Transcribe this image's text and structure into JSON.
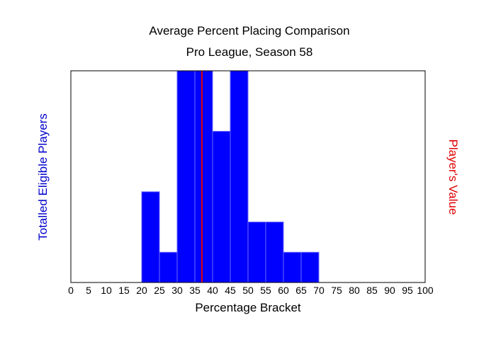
{
  "chart_data": {
    "type": "bar",
    "title": "Average Percent Placing Comparison",
    "subtitle": "Pro League, Season 58",
    "xlabel": "Percentage Bracket",
    "ylabel_left": "Totalled Eligible Players",
    "ylabel_right": "Player's Value",
    "xlim": [
      0,
      100
    ],
    "ylim": [
      0,
      7
    ],
    "bin_width": 5,
    "x_ticks": [
      0,
      5,
      10,
      15,
      20,
      25,
      30,
      35,
      40,
      45,
      50,
      55,
      60,
      65,
      70,
      75,
      80,
      85,
      90,
      95,
      100
    ],
    "bins": [
      {
        "start": 20,
        "value": 3
      },
      {
        "start": 25,
        "value": 1
      },
      {
        "start": 30,
        "value": 7
      },
      {
        "start": 35,
        "value": 7
      },
      {
        "start": 40,
        "value": 5
      },
      {
        "start": 45,
        "value": 7
      },
      {
        "start": 50,
        "value": 2
      },
      {
        "start": 55,
        "value": 2
      },
      {
        "start": 60,
        "value": 1
      },
      {
        "start": 65,
        "value": 1
      }
    ],
    "player_value": 37,
    "grid": false,
    "colors": {
      "bar": "#0000ff",
      "bar_edge": "#6a6aff",
      "player_line": "#e00000",
      "left_label": "#0000cc",
      "right_label": "#e00000"
    }
  }
}
